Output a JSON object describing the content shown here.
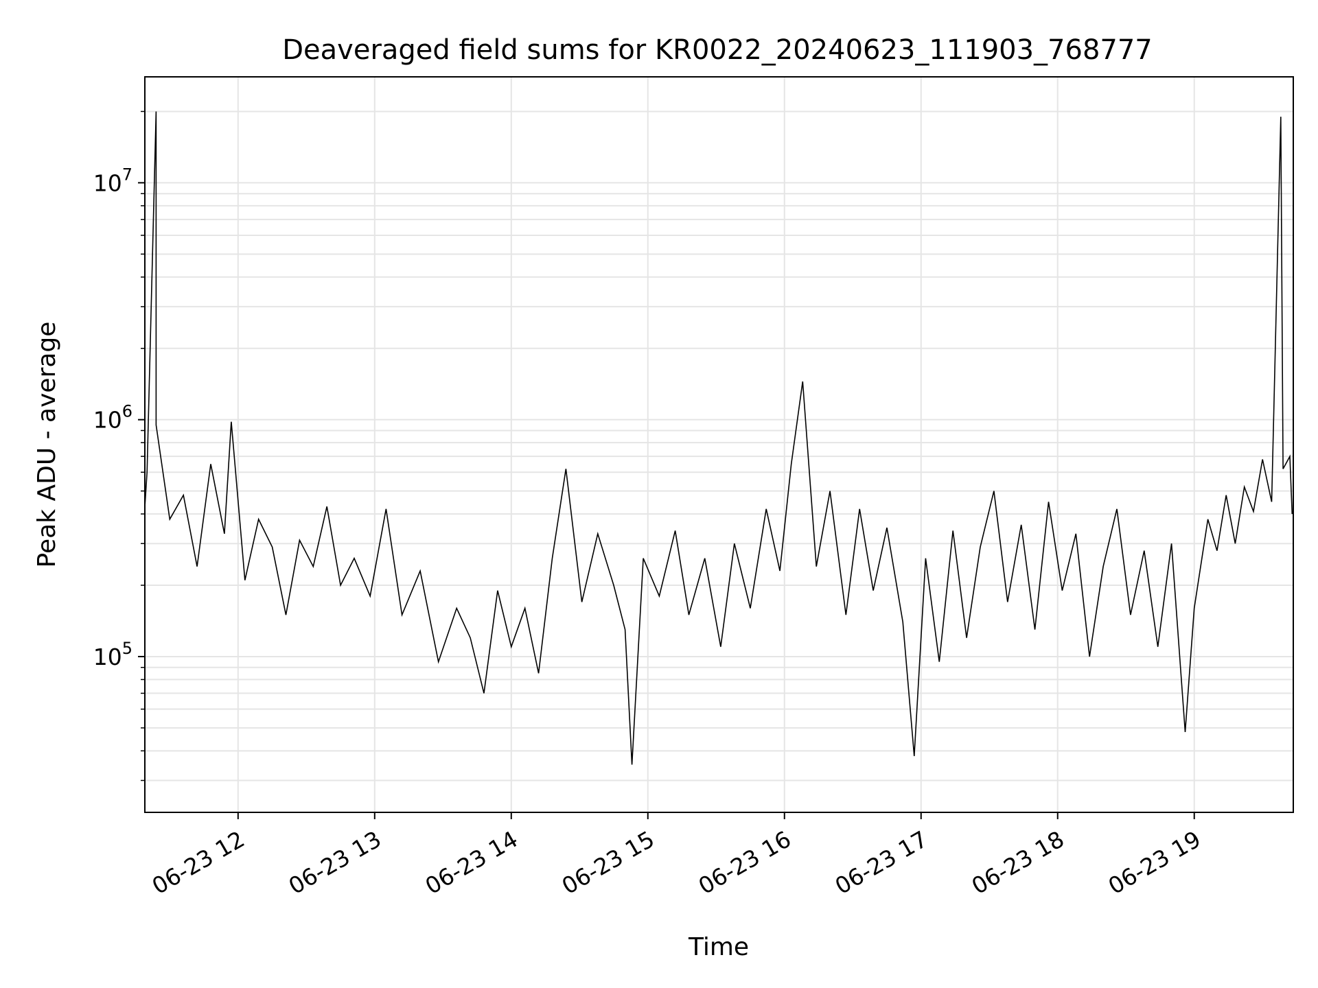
{
  "chart_data": {
    "type": "line",
    "title": "Deaveraged field sums for KR0022_20240623_111903_768777",
    "xlabel": "Time",
    "ylabel": "Peak ADU - average",
    "xlim": [
      "2024-06-23 11:19:03",
      "2024-06-23 19:43:30"
    ],
    "ylim": [
      22000,
      28000000
    ],
    "yscale": "log",
    "grid": true,
    "line_color": "#000000",
    "grid_color": "#e5e5e5",
    "x_ticks": [
      {
        "label": "06-23 12",
        "value": "2024-06-23 12:00"
      },
      {
        "label": "06-23 13",
        "value": "2024-06-23 13:00"
      },
      {
        "label": "06-23 14",
        "value": "2024-06-23 14:00"
      },
      {
        "label": "06-23 15",
        "value": "2024-06-23 15:00"
      },
      {
        "label": "06-23 16",
        "value": "2024-06-23 16:00"
      },
      {
        "label": "06-23 17",
        "value": "2024-06-23 17:00"
      },
      {
        "label": "06-23 18",
        "value": "2024-06-23 18:00"
      },
      {
        "label": "06-23 19",
        "value": "2024-06-23 19:00"
      }
    ],
    "y_ticks": [
      {
        "base": "10",
        "exp": "5",
        "value": 100000
      },
      {
        "base": "10",
        "exp": "6",
        "value": 1000000
      },
      {
        "base": "10",
        "exp": "7",
        "value": 10000000
      }
    ],
    "series": [
      {
        "points": [
          [
            "11:19",
            420000
          ],
          [
            "11:20",
            600000
          ],
          [
            "11:24",
            20000000
          ],
          [
            "11:24",
            950000
          ],
          [
            "11:30",
            380000
          ],
          [
            "11:36",
            480000
          ],
          [
            "11:42",
            240000
          ],
          [
            "11:48",
            650000
          ],
          [
            "11:54",
            330000
          ],
          [
            "11:57",
            980000
          ],
          [
            "12:03",
            210000
          ],
          [
            "12:09",
            380000
          ],
          [
            "12:15",
            290000
          ],
          [
            "12:21",
            150000
          ],
          [
            "12:27",
            310000
          ],
          [
            "12:33",
            240000
          ],
          [
            "12:39",
            430000
          ],
          [
            "12:45",
            200000
          ],
          [
            "12:51",
            260000
          ],
          [
            "12:58",
            180000
          ],
          [
            "13:05",
            420000
          ],
          [
            "13:12",
            150000
          ],
          [
            "13:20",
            230000
          ],
          [
            "13:28",
            95000
          ],
          [
            "13:36",
            160000
          ],
          [
            "13:42",
            120000
          ],
          [
            "13:48",
            70000
          ],
          [
            "13:54",
            190000
          ],
          [
            "14:00",
            110000
          ],
          [
            "14:06",
            160000
          ],
          [
            "14:12",
            85000
          ],
          [
            "14:18",
            260000
          ],
          [
            "14:24",
            620000
          ],
          [
            "14:31",
            170000
          ],
          [
            "14:38",
            330000
          ],
          [
            "14:45",
            200000
          ],
          [
            "14:50",
            130000
          ],
          [
            "14:53",
            35000
          ],
          [
            "14:58",
            260000
          ],
          [
            "15:05",
            180000
          ],
          [
            "15:12",
            340000
          ],
          [
            "15:18",
            150000
          ],
          [
            "15:25",
            260000
          ],
          [
            "15:32",
            110000
          ],
          [
            "15:38",
            300000
          ],
          [
            "15:45",
            160000
          ],
          [
            "15:52",
            420000
          ],
          [
            "15:58",
            230000
          ],
          [
            "16:03",
            650000
          ],
          [
            "16:08",
            1450000
          ],
          [
            "16:14",
            240000
          ],
          [
            "16:20",
            500000
          ],
          [
            "16:27",
            150000
          ],
          [
            "16:33",
            420000
          ],
          [
            "16:39",
            190000
          ],
          [
            "16:45",
            350000
          ],
          [
            "16:52",
            140000
          ],
          [
            "16:57",
            38000
          ],
          [
            "17:02",
            260000
          ],
          [
            "17:08",
            95000
          ],
          [
            "17:14",
            340000
          ],
          [
            "17:20",
            120000
          ],
          [
            "17:26",
            290000
          ],
          [
            "17:32",
            500000
          ],
          [
            "17:38",
            170000
          ],
          [
            "17:44",
            360000
          ],
          [
            "17:50",
            130000
          ],
          [
            "17:56",
            450000
          ],
          [
            "18:02",
            190000
          ],
          [
            "18:08",
            330000
          ],
          [
            "18:14",
            100000
          ],
          [
            "18:20",
            240000
          ],
          [
            "18:26",
            420000
          ],
          [
            "18:32",
            150000
          ],
          [
            "18:38",
            280000
          ],
          [
            "18:44",
            110000
          ],
          [
            "18:50",
            300000
          ],
          [
            "18:56",
            48000
          ],
          [
            "19:00",
            160000
          ],
          [
            "19:06",
            380000
          ],
          [
            "19:10",
            280000
          ],
          [
            "19:14",
            480000
          ],
          [
            "19:18",
            300000
          ],
          [
            "19:22",
            520000
          ],
          [
            "19:26",
            410000
          ],
          [
            "19:30",
            680000
          ],
          [
            "19:34",
            450000
          ],
          [
            "19:38",
            19000000
          ],
          [
            "19:39",
            620000
          ],
          [
            "19:42",
            700000
          ],
          [
            "19:43",
            400000
          ]
        ]
      }
    ]
  }
}
